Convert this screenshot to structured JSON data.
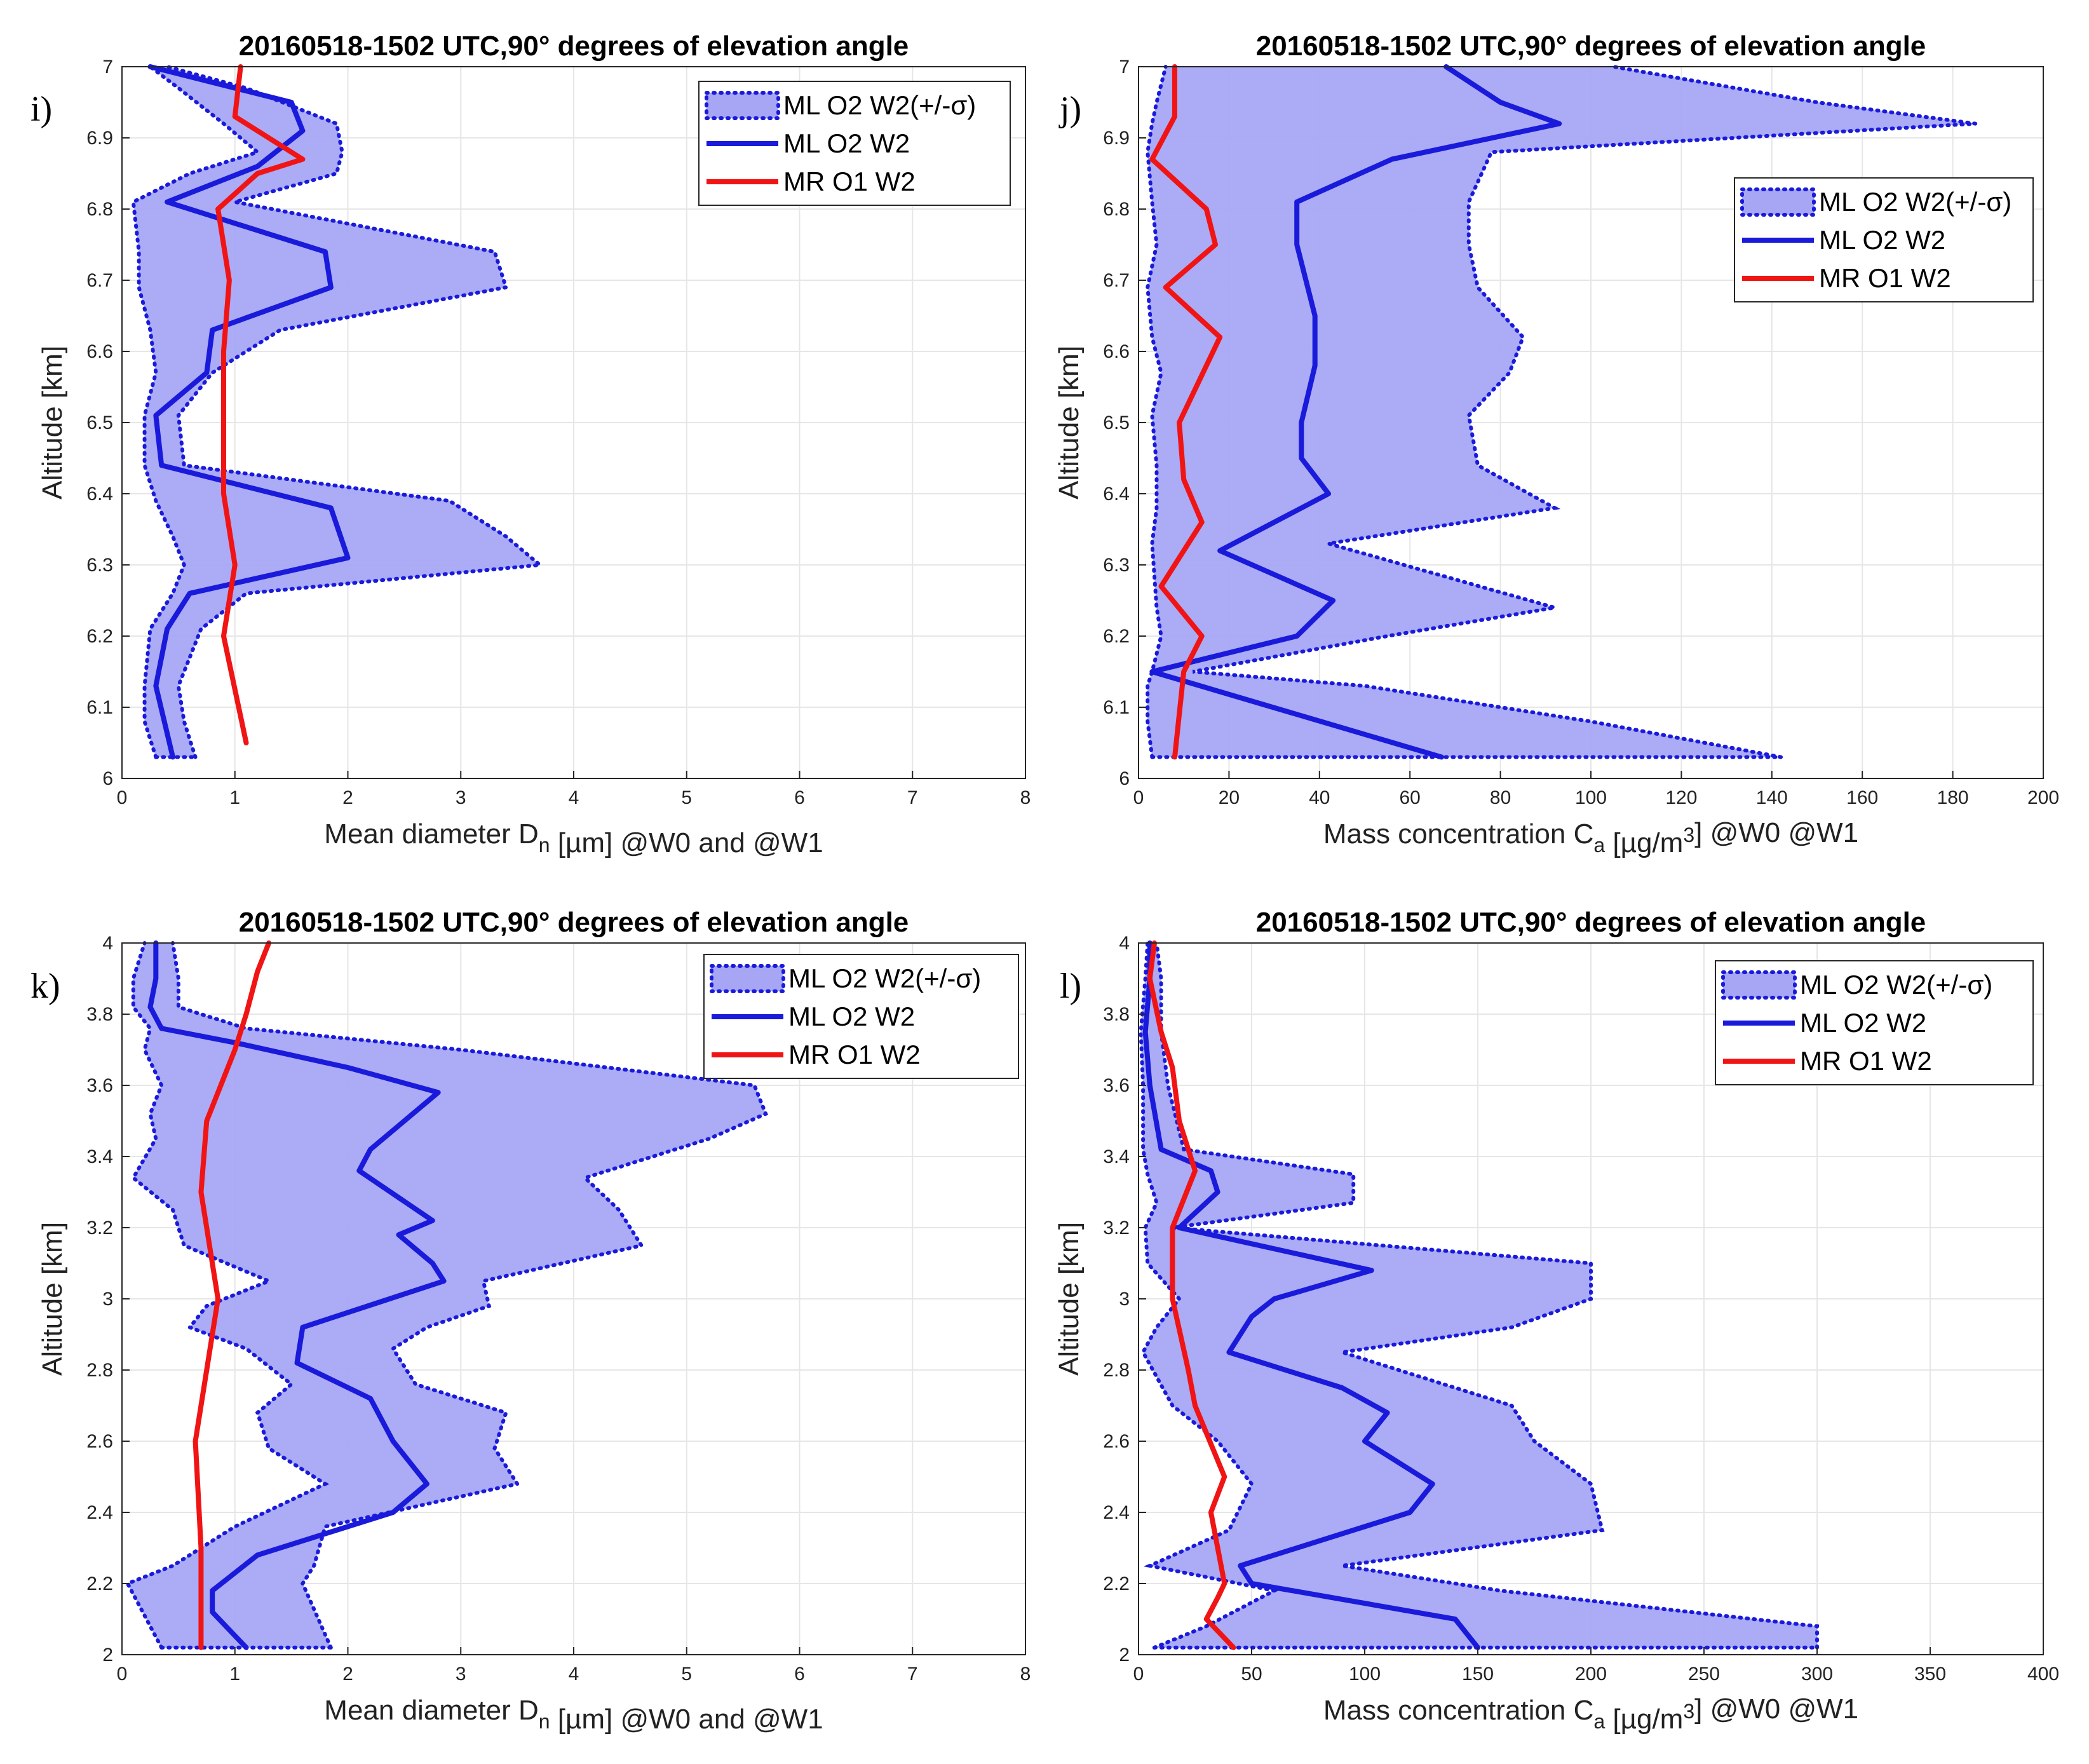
{
  "colors": {
    "envelope_fill": "#a6a6f5",
    "envelope_edge": "#1a1adb",
    "ml_line": "#1a1adb",
    "mr_line": "#f01414",
    "grid": "#e6e6e6"
  },
  "chart_data": [
    {
      "type": "line",
      "panel": "i)",
      "title": "20160518-1502 UTC,90° degrees of elevation angle",
      "xlabel": "Mean diameter D_n [µm] @W0 and @W1",
      "ylabel": "Altitude [km]",
      "xlim": [
        0,
        8
      ],
      "ylim": [
        6,
        7
      ],
      "xticks": [
        0,
        1,
        2,
        3,
        4,
        5,
        6,
        7,
        8
      ],
      "xtick_labels": [
        "0",
        "1",
        "2",
        "3",
        "4",
        "5",
        "6",
        "7",
        "8"
      ],
      "yticks": [
        6,
        6.1,
        6.2,
        6.3,
        6.4,
        6.5,
        6.6,
        6.7,
        6.8,
        6.9,
        7
      ],
      "ytick_labels": [
        "6",
        "6.1",
        "6.2",
        "6.3",
        "6.4",
        "6.5",
        "6.6",
        "6.7",
        "6.8",
        "6.9",
        "7"
      ],
      "legend": {
        "location": "top-right",
        "items": [
          "ML O2 W2(+/-σ)",
          "ML O2 W2",
          "MR O1 W2"
        ]
      },
      "series": [
        {
          "name": "ML O2 W2(+/-σ)",
          "kind": "band",
          "y": [
            6.03,
            6.08,
            6.13,
            6.21,
            6.26,
            6.3,
            6.34,
            6.39,
            6.44,
            6.51,
            6.57,
            6.63,
            6.69,
            6.74,
            6.81,
            6.85,
            6.88,
            6.92,
            6.97,
            7.0
          ],
          "lower": [
            0.3,
            0.2,
            0.2,
            0.25,
            0.45,
            0.55,
            0.45,
            0.3,
            0.2,
            0.2,
            0.3,
            0.25,
            0.15,
            0.15,
            0.1,
            0.6,
            1.2,
            0.9,
            0.5,
            0.25
          ],
          "upper": [
            0.65,
            0.55,
            0.5,
            0.7,
            1.1,
            3.7,
            3.4,
            2.9,
            0.55,
            0.5,
            0.8,
            1.4,
            3.4,
            3.3,
            1.0,
            1.9,
            1.95,
            1.9,
            1.1,
            0.4
          ]
        },
        {
          "name": "ML O2 W2",
          "kind": "line",
          "y": [
            6.03,
            6.13,
            6.21,
            6.26,
            6.31,
            6.38,
            6.44,
            6.51,
            6.57,
            6.63,
            6.69,
            6.74,
            6.81,
            6.86,
            6.91,
            6.95,
            7.0
          ],
          "x": [
            0.45,
            0.3,
            0.4,
            0.6,
            2.0,
            1.85,
            0.35,
            0.3,
            0.75,
            0.8,
            1.85,
            1.8,
            0.4,
            1.2,
            1.6,
            1.5,
            0.25
          ]
        },
        {
          "name": "MR O1 W2",
          "kind": "line",
          "y": [
            6.05,
            6.2,
            6.3,
            6.4,
            6.5,
            6.6,
            6.7,
            6.8,
            6.85,
            6.87,
            6.93,
            7.0
          ],
          "x": [
            1.1,
            0.9,
            1.0,
            0.9,
            0.9,
            0.9,
            0.95,
            0.85,
            1.2,
            1.6,
            1.0,
            1.05
          ]
        }
      ]
    },
    {
      "type": "line",
      "panel": "j)",
      "title": "20160518-1502 UTC,90° degrees of elevation angle",
      "xlabel": "Mass concentration C_a [µg/m³] @W0 @W1",
      "ylabel": "Altitude [km]",
      "xlim": [
        0,
        200
      ],
      "ylim": [
        6,
        7
      ],
      "xticks": [
        0,
        20,
        40,
        60,
        80,
        100,
        120,
        140,
        160,
        180,
        200
      ],
      "xtick_labels": [
        "0",
        "20",
        "40",
        "60",
        "80",
        "100",
        "120",
        "140",
        "160",
        "180",
        "200"
      ],
      "yticks": [
        6,
        6.1,
        6.2,
        6.3,
        6.4,
        6.5,
        6.6,
        6.7,
        6.8,
        6.9,
        7
      ],
      "ytick_labels": [
        "6",
        "6.1",
        "6.2",
        "6.3",
        "6.4",
        "6.5",
        "6.6",
        "6.7",
        "6.8",
        "6.9",
        "7"
      ],
      "legend": {
        "location": "top-right",
        "items": [
          "ML O2 W2(+/-σ)",
          "ML O2 W2",
          "MR O1 W2"
        ]
      },
      "series": [
        {
          "name": "ML O2 W2(+/-σ)",
          "kind": "band",
          "y": [
            6.03,
            6.08,
            6.13,
            6.15,
            6.2,
            6.24,
            6.33,
            6.38,
            6.44,
            6.51,
            6.57,
            6.62,
            6.69,
            6.75,
            6.81,
            6.88,
            6.92,
            6.95,
            7.0
          ],
          "lower": [
            3,
            2,
            2,
            3,
            5,
            4,
            3,
            4,
            4,
            3,
            5,
            3,
            2,
            4,
            3,
            2,
            3,
            4,
            6
          ],
          "upper": [
            142,
            100,
            50,
            12,
            55,
            92,
            42,
            92,
            75,
            73,
            82,
            85,
            75,
            73,
            73,
            78,
            185,
            150,
            105
          ]
        },
        {
          "name": "ML O2 W2",
          "kind": "line",
          "y": [
            6.03,
            6.15,
            6.2,
            6.25,
            6.32,
            6.4,
            6.45,
            6.5,
            6.58,
            6.65,
            6.75,
            6.81,
            6.87,
            6.92,
            6.95,
            7.0
          ],
          "x": [
            67,
            3,
            35,
            43,
            18,
            42,
            36,
            36,
            39,
            39,
            35,
            35,
            56,
            93,
            80,
            68
          ]
        },
        {
          "name": "MR O1 W2",
          "kind": "line",
          "y": [
            6.03,
            6.15,
            6.2,
            6.27,
            6.36,
            6.42,
            6.5,
            6.62,
            6.69,
            6.75,
            6.8,
            6.87,
            6.93,
            7.0
          ],
          "x": [
            8,
            10,
            14,
            5,
            14,
            10,
            9,
            18,
            6,
            17,
            15,
            3,
            8,
            8
          ]
        }
      ]
    },
    {
      "type": "line",
      "panel": "k)",
      "title": "20160518-1502 UTC,90° degrees of elevation angle",
      "xlabel": "Mean diameter D_n [µm] @W0 and @W1",
      "ylabel": "Altitude [km]",
      "xlim": [
        0,
        8
      ],
      "ylim": [
        2,
        4
      ],
      "xticks": [
        0,
        1,
        2,
        3,
        4,
        5,
        6,
        7,
        8
      ],
      "xtick_labels": [
        "0",
        "1",
        "2",
        "3",
        "4",
        "5",
        "6",
        "7",
        "8"
      ],
      "yticks": [
        2,
        2.2,
        2.4,
        2.6,
        2.8,
        3,
        3.2,
        3.4,
        3.6,
        3.8,
        4
      ],
      "ytick_labels": [
        "2",
        "2.2",
        "2.4",
        "2.6",
        "2.8",
        "3",
        "3.2",
        "3.4",
        "3.6",
        "3.8",
        "4"
      ],
      "legend": {
        "location": "top-right",
        "items": [
          "ML O2 W2(+/-σ)",
          "ML O2 W2",
          "MR O1 W2"
        ]
      },
      "series": [
        {
          "name": "ML O2 W2(+/-σ)",
          "kind": "band",
          "y": [
            2.02,
            2.2,
            2.25,
            2.36,
            2.48,
            2.58,
            2.68,
            2.76,
            2.86,
            2.92,
            2.98,
            3.05,
            3.15,
            3.25,
            3.34,
            3.45,
            3.52,
            3.6,
            3.7,
            3.76,
            3.82,
            3.9,
            4.0
          ],
          "lower": [
            0.35,
            0.05,
            0.45,
            1.0,
            1.8,
            1.3,
            1.2,
            1.5,
            1.1,
            0.6,
            0.75,
            1.3,
            0.55,
            0.45,
            0.1,
            0.3,
            0.25,
            0.35,
            0.2,
            0.25,
            0.1,
            0.1,
            0.2
          ],
          "upper": [
            1.85,
            1.6,
            1.7,
            1.8,
            3.5,
            3.3,
            3.4,
            2.6,
            2.4,
            2.7,
            3.25,
            3.2,
            4.6,
            4.4,
            4.1,
            5.2,
            5.7,
            5.6,
            3.0,
            1.1,
            0.5,
            0.5,
            0.45
          ]
        },
        {
          "name": "ML O2 W2",
          "kind": "line",
          "y": [
            2.02,
            2.12,
            2.18,
            2.28,
            2.4,
            2.48,
            2.6,
            2.72,
            2.82,
            2.92,
            3.05,
            3.1,
            3.18,
            3.22,
            3.36,
            3.42,
            3.58,
            3.65,
            3.72,
            3.76,
            3.82,
            3.9,
            4.0
          ],
          "x": [
            1.1,
            0.8,
            0.8,
            1.2,
            2.4,
            2.7,
            2.4,
            2.2,
            1.55,
            1.6,
            2.85,
            2.75,
            2.45,
            2.75,
            2.1,
            2.2,
            2.8,
            2.0,
            1.0,
            0.35,
            0.25,
            0.3,
            0.3
          ]
        },
        {
          "name": "MR O1 W2",
          "kind": "line",
          "y": [
            2.02,
            2.3,
            2.6,
            2.8,
            3.0,
            3.3,
            3.5,
            3.7,
            3.8,
            3.92,
            4.0
          ],
          "x": [
            0.7,
            0.7,
            0.65,
            0.75,
            0.85,
            0.7,
            0.75,
            1.0,
            1.1,
            1.2,
            1.3
          ]
        }
      ]
    },
    {
      "type": "line",
      "panel": "l)",
      "title": "20160518-1502 UTC,90° degrees of elevation angle",
      "xlabel": "Mass concentration C_a [µg/m³] @W0 @W1",
      "ylabel": "Altitude [km]",
      "xlim": [
        0,
        400
      ],
      "ylim": [
        2,
        4
      ],
      "xticks": [
        0,
        50,
        100,
        150,
        200,
        250,
        300,
        350,
        400
      ],
      "xtick_labels": [
        "0",
        "50",
        "100",
        "150",
        "200",
        "250",
        "300",
        "350",
        "400"
      ],
      "yticks": [
        2,
        2.2,
        2.4,
        2.6,
        2.8,
        3,
        3.2,
        3.4,
        3.6,
        3.8,
        4
      ],
      "ytick_labels": [
        "2",
        "2.2",
        "2.4",
        "2.6",
        "2.8",
        "3",
        "3.2",
        "3.4",
        "3.6",
        "3.8",
        "4"
      ],
      "legend": {
        "location": "top-right",
        "items": [
          "ML O2 W2(+/-σ)",
          "ML O2 W2",
          "MR O1 W2"
        ]
      },
      "series": [
        {
          "name": "ML O2 W2(+/-σ)",
          "kind": "band",
          "y": [
            2.02,
            2.08,
            2.18,
            2.25,
            2.35,
            2.48,
            2.6,
            2.7,
            2.85,
            2.92,
            3.0,
            3.1,
            3.2,
            3.27,
            3.35,
            3.42,
            3.6,
            3.75,
            3.9,
            4.0
          ],
          "lower": [
            7,
            30,
            60,
            5,
            40,
            50,
            35,
            15,
            2,
            8,
            18,
            4,
            3,
            8,
            4,
            2,
            2,
            1,
            3,
            4
          ],
          "upper": [
            300,
            300,
            160,
            90,
            205,
            200,
            175,
            165,
            90,
            165,
            200,
            200,
            15,
            95,
            95,
            20,
            13,
            10,
            10,
            8
          ]
        },
        {
          "name": "ML O2 W2",
          "kind": "line",
          "y": [
            2.02,
            2.1,
            2.2,
            2.25,
            2.4,
            2.48,
            2.6,
            2.68,
            2.75,
            2.85,
            2.95,
            3.0,
            3.08,
            3.2,
            3.3,
            3.36,
            3.42,
            3.6,
            3.75,
            3.9,
            4.0
          ],
          "x": [
            150,
            140,
            50,
            45,
            120,
            130,
            100,
            110,
            90,
            40,
            50,
            60,
            103,
            18,
            35,
            32,
            10,
            5,
            3,
            5,
            5
          ]
        },
        {
          "name": "MR O1 W2",
          "kind": "line",
          "y": [
            2.02,
            2.1,
            2.16,
            2.2,
            2.3,
            2.4,
            2.5,
            2.7,
            2.8,
            3.0,
            3.2,
            3.36,
            3.5,
            3.65,
            3.75,
            3.9,
            4.0
          ],
          "x": [
            42,
            30,
            35,
            38,
            35,
            32,
            38,
            25,
            22,
            15,
            15,
            25,
            18,
            15,
            10,
            5,
            7
          ]
        }
      ]
    }
  ]
}
